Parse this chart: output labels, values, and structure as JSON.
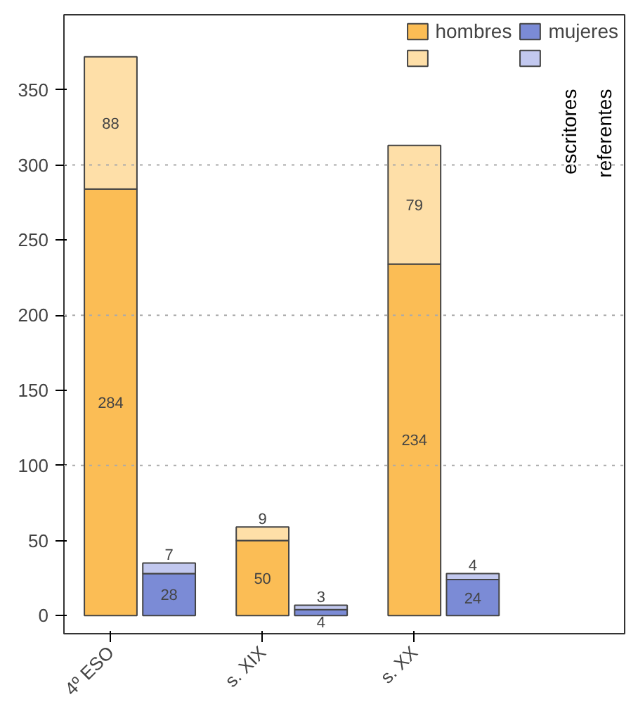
{
  "chart_data": {
    "type": "bar",
    "stacked": true,
    "categories": [
      "4º ESO",
      null,
      "s. XIX",
      null,
      "s. XX",
      null
    ],
    "series": [
      {
        "name": "hombres",
        "color": "#fbbd55",
        "values": [
          284,
          null,
          50,
          null,
          234,
          null
        ]
      },
      {
        "color": "#fedfa8",
        "values": [
          88,
          null,
          9,
          null,
          79,
          null
        ]
      },
      {
        "name": "mujeres",
        "color": "#7b8bd6",
        "values": [
          null,
          28,
          null,
          4,
          null,
          24
        ]
      },
      {
        "color": "#c2c8ef",
        "values": [
          null,
          7,
          null,
          3,
          null,
          4
        ]
      }
    ],
    "ylim": [
      -12,
      400
    ],
    "yticks": [
      0,
      50,
      100,
      150,
      200,
      250,
      300,
      350
    ],
    "ref_lines": [
      {
        "axis": "y",
        "value": 100,
        "color": "#aaaaaa",
        "line_style": "dotted"
      },
      {
        "axis": "y",
        "value": 200,
        "color": "#aaaaaa",
        "line_style": "dotted"
      },
      {
        "axis": "y",
        "value": 300,
        "color": "#aaaaaa",
        "line_style": "dotted"
      }
    ],
    "data_labels": true,
    "legend": "top right",
    "annotations": [
      "escritores",
      "referentes"
    ]
  }
}
